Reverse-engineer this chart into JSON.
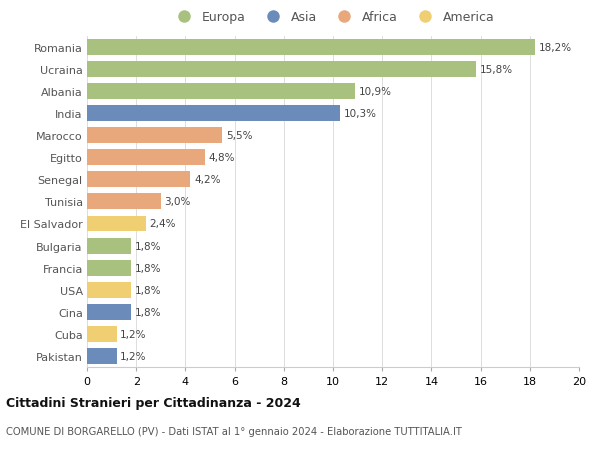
{
  "countries": [
    "Romania",
    "Ucraina",
    "Albania",
    "India",
    "Marocco",
    "Egitto",
    "Senegal",
    "Tunisia",
    "El Salvador",
    "Bulgaria",
    "Francia",
    "USA",
    "Cina",
    "Cuba",
    "Pakistan"
  ],
  "values": [
    18.2,
    15.8,
    10.9,
    10.3,
    5.5,
    4.8,
    4.2,
    3.0,
    2.4,
    1.8,
    1.8,
    1.8,
    1.8,
    1.2,
    1.2
  ],
  "labels": [
    "18,2%",
    "15,8%",
    "10,9%",
    "10,3%",
    "5,5%",
    "4,8%",
    "4,2%",
    "3,0%",
    "2,4%",
    "1,8%",
    "1,8%",
    "1,8%",
    "1,8%",
    "1,2%",
    "1,2%"
  ],
  "continents": [
    "Europa",
    "Europa",
    "Europa",
    "Asia",
    "Africa",
    "Africa",
    "Africa",
    "Africa",
    "America",
    "Europa",
    "Europa",
    "America",
    "Asia",
    "America",
    "Asia"
  ],
  "colors": {
    "Europa": "#a8c17e",
    "Asia": "#6b8cba",
    "Africa": "#e8a87c",
    "America": "#f0ce72"
  },
  "legend_order": [
    "Europa",
    "Asia",
    "Africa",
    "America"
  ],
  "xlim": [
    0,
    20
  ],
  "xticks": [
    0,
    2,
    4,
    6,
    8,
    10,
    12,
    14,
    16,
    18,
    20
  ],
  "title": "Cittadini Stranieri per Cittadinanza - 2024",
  "subtitle": "COMUNE DI BORGARELLO (PV) - Dati ISTAT al 1° gennaio 2024 - Elaborazione TUTTITALIA.IT",
  "background_color": "#ffffff",
  "grid_color": "#d8d8d8"
}
